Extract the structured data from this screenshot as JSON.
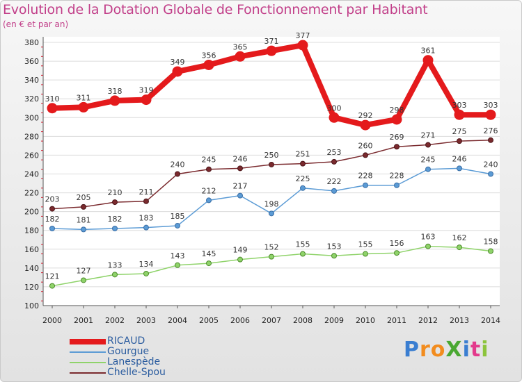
{
  "title": "Evolution de la Dotation Globale de Fonctionnement par Habitant",
  "subtitle": "(en € et par an)",
  "logo": {
    "text": "ProXiti",
    "colors": [
      "#3a7ed1",
      "#f28c1e",
      "#f28c1e",
      "#4aa832",
      "#3a7ed1",
      "#e33a8c",
      "#8cc43c"
    ]
  },
  "chart_data": {
    "type": "line",
    "title": "Evolution de la Dotation Globale de Fonctionnement par Habitant",
    "subtitle": "(en € et par an)",
    "xlabel": "",
    "ylabel": "",
    "x": [
      "2000",
      "2001",
      "2002",
      "2003",
      "2004",
      "2005",
      "2006",
      "2007",
      "2008",
      "2009",
      "2010",
      "2011",
      "2012",
      "2013",
      "2014"
    ],
    "ylim": [
      100,
      380
    ],
    "yticks": [
      100,
      120,
      140,
      160,
      180,
      200,
      220,
      240,
      260,
      280,
      300,
      320,
      340,
      360,
      380
    ],
    "grid": "horizontal",
    "legend": "bottom-left",
    "series": [
      {
        "name": "RICAUD",
        "color": "#e41a1c",
        "values": [
          310,
          311,
          318,
          319,
          349,
          356,
          365,
          371,
          377,
          300,
          292,
          298,
          361,
          303,
          303
        ],
        "labels": [
          "310",
          "311",
          "318",
          "319",
          "349",
          "356",
          "365",
          "371",
          "377",
          "300",
          "292",
          "298",
          "361",
          "303",
          "303"
        ]
      },
      {
        "name": "Gourgue",
        "color": "#5b9bd5",
        "values": [
          182,
          181,
          182,
          183,
          185,
          212,
          217,
          198,
          225,
          222,
          228,
          228,
          245,
          246,
          240
        ],
        "labels": [
          "182",
          "181",
          "182",
          "183",
          "185",
          "212",
          "217",
          "198",
          "225",
          "222",
          "228",
          "228",
          "245",
          "246",
          "240"
        ]
      },
      {
        "name": "Lanespède",
        "color": "#8fd36a",
        "values": [
          121,
          127,
          133,
          134,
          143,
          145,
          149,
          152,
          155,
          153,
          155,
          156,
          163,
          162,
          158
        ],
        "labels": [
          "121",
          "127",
          "133",
          "134",
          "143",
          "145",
          "149",
          "152",
          "155",
          "153",
          "155",
          "156",
          "163",
          "162",
          "158"
        ]
      },
      {
        "name": "Chelle-Spou",
        "color": "#7a2a2e",
        "values": [
          203,
          205,
          210,
          211,
          240,
          245,
          246,
          250,
          251,
          253,
          260,
          269,
          271,
          275,
          276
        ],
        "labels": [
          "203",
          "205",
          "210",
          "211",
          "240",
          "245",
          "246",
          "250",
          "251",
          "253",
          "260",
          "269",
          "271",
          "275",
          "276"
        ]
      }
    ]
  }
}
